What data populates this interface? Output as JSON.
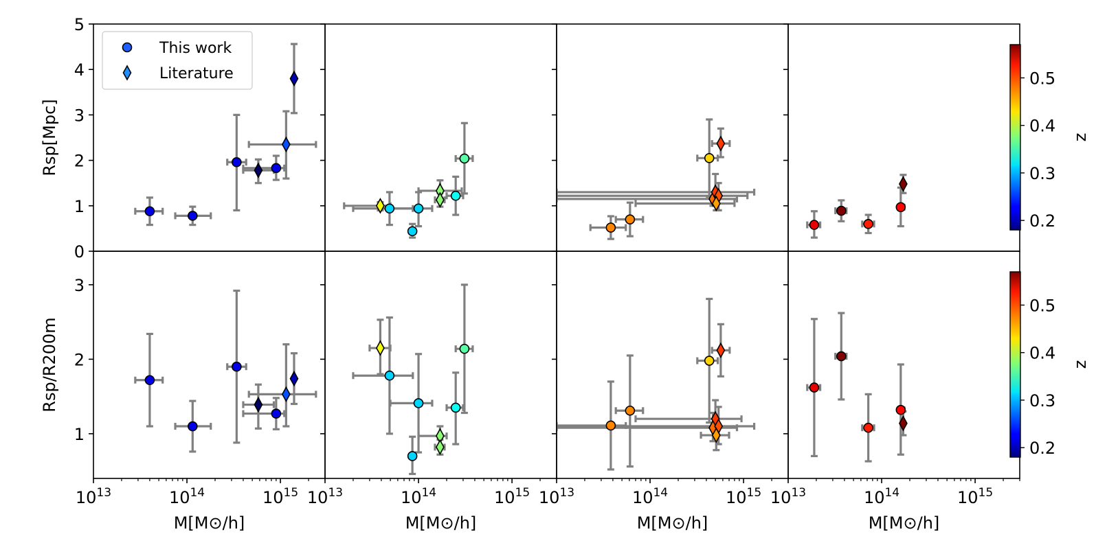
{
  "figure": {
    "xlabel": "M[M⊙/h]",
    "ylabels": [
      "Rsp[Mpc]",
      "Rsp/R200m"
    ],
    "colorbar_label": "z",
    "colorbar_ticks": [
      "0.2",
      "0.3",
      "0.4",
      "0.5"
    ],
    "legend": [
      {
        "label": "This work",
        "marker": "circle"
      },
      {
        "label": "Literature",
        "marker": "diamond"
      }
    ]
  },
  "chart_data": {
    "type": "scatter",
    "xscale": "log",
    "xlim": [
      10000000000000.0,
      3000000000000000.0
    ],
    "x_tick_labels": [
      "10",
      "13",
      "10",
      "14",
      "10",
      "15"
    ],
    "colormap": "jet",
    "color_range": [
      0.18,
      0.57
    ],
    "rows": [
      {
        "ylabel": "Rsp[Mpc]",
        "ylim": [
          0,
          5
        ],
        "ytick_values": [
          0,
          1,
          2,
          3,
          4,
          5
        ],
        "ytick_labels": [
          "0",
          "1",
          "2",
          "3",
          "4",
          "5"
        ],
        "panels": [
          {
            "points": [
              {
                "m": 40000000000000.0,
                "y": 0.88,
                "xlo": 28000000000000.0,
                "xhi": 55000000000000.0,
                "ylo": 0.58,
                "yhi": 1.18,
                "z": 0.22,
                "marker": "circle"
              },
              {
                "m": 115000000000000.0,
                "y": 0.78,
                "xlo": 75000000000000.0,
                "xhi": 180000000000000.0,
                "ylo": 0.58,
                "yhi": 0.98,
                "z": 0.22,
                "marker": "circle"
              },
              {
                "m": 340000000000000.0,
                "y": 1.96,
                "xlo": 270000000000000.0,
                "xhi": 430000000000000.0,
                "ylo": 0.9,
                "yhi": 3.0,
                "z": 0.22,
                "marker": "circle"
              },
              {
                "m": 580000000000000.0,
                "y": 1.78,
                "xlo": 400000000000000.0,
                "xhi": 850000000000000.0,
                "ylo": 1.5,
                "yhi": 2.02,
                "z": 0.17,
                "marker": "diamond"
              },
              {
                "m": 900000000000000.0,
                "y": 1.83,
                "xlo": 400000000000000.0,
                "xhi": 1100000000000000.0,
                "ylo": 1.57,
                "yhi": 2.1,
                "z": 0.22,
                "marker": "circle"
              },
              {
                "m": 1150000000000000.0,
                "y": 2.35,
                "xlo": 460000000000000.0,
                "xhi": 2400000000000000.0,
                "ylo": 1.6,
                "yhi": 3.08,
                "z": 0.26,
                "marker": "diamond"
              },
              {
                "m": 1400000000000000.0,
                "y": 3.8,
                "xlo": 1400000000000000.0,
                "xhi": 1400000000000000.0,
                "ylo": 3.04,
                "yhi": 4.56,
                "z": 0.2,
                "marker": "diamond"
              }
            ]
          },
          {
            "points": [
              {
                "m": 39000000000000.0,
                "y": 1.0,
                "xlo": 16000000000000.0,
                "xhi": 50000000000000.0,
                "ylo": 0.9,
                "yhi": 1.08,
                "z": 0.42,
                "marker": "diamond"
              },
              {
                "m": 49000000000000.0,
                "y": 0.94,
                "xlo": 20000000000000.0,
                "xhi": 87000000000000.0,
                "ylo": 0.58,
                "yhi": 1.3,
                "z": 0.31,
                "marker": "circle"
              },
              {
                "m": 86000000000000.0,
                "y": 0.44,
                "xlo": 86000000000000.0,
                "xhi": 86000000000000.0,
                "ylo": 0.3,
                "yhi": 0.6,
                "z": 0.31,
                "marker": "circle"
              },
              {
                "m": 100000000000000.0,
                "y": 0.94,
                "xlo": 50000000000000.0,
                "xhi": 140000000000000.0,
                "ylo": 0.55,
                "yhi": 1.3,
                "z": 0.31,
                "marker": "circle"
              },
              {
                "m": 170000000000000.0,
                "y": 1.33,
                "xlo": 100000000000000.0,
                "xhi": 290000000000000.0,
                "ylo": 1.1,
                "yhi": 1.56,
                "z": 0.38,
                "marker": "diamond"
              },
              {
                "m": 170000000000000.0,
                "y": 1.13,
                "xlo": 150000000000000.0,
                "xhi": 190000000000000.0,
                "ylo": 0.98,
                "yhi": 1.28,
                "z": 0.38,
                "marker": "diamond"
              },
              {
                "m": 250000000000000.0,
                "y": 1.22,
                "xlo": 200000000000000.0,
                "xhi": 300000000000000.0,
                "ylo": 0.8,
                "yhi": 1.64,
                "z": 0.33,
                "marker": "circle"
              },
              {
                "m": 310000000000000.0,
                "y": 2.04,
                "xlo": 250000000000000.0,
                "xhi": 380000000000000.0,
                "ylo": 1.27,
                "yhi": 2.82,
                "z": 0.36,
                "marker": "circle"
              }
            ]
          },
          {
            "points": [
              {
                "m": 38000000000000.0,
                "y": 0.52,
                "xlo": 23000000000000.0,
                "xhi": 55000000000000.0,
                "ylo": 0.27,
                "yhi": 0.77,
                "z": 0.47,
                "marker": "circle"
              },
              {
                "m": 61000000000000.0,
                "y": 0.7,
                "xlo": 43000000000000.0,
                "xhi": 84000000000000.0,
                "ylo": 0.33,
                "yhi": 1.07,
                "z": 0.47,
                "marker": "circle"
              },
              {
                "m": 430000000000000.0,
                "y": 2.05,
                "xlo": 320000000000000.0,
                "xhi": 530000000000000.0,
                "ylo": 1.2,
                "yhi": 2.9,
                "z": 0.44,
                "marker": "circle"
              },
              {
                "m": 570000000000000.0,
                "y": 2.37,
                "xlo": 460000000000000.0,
                "xhi": 710000000000000.0,
                "ylo": 2.07,
                "yhi": 2.7,
                "z": 0.5,
                "marker": "diamond"
              },
              {
                "m": 470000000000000.0,
                "y": 1.15,
                "xlo": 10000000000000.0,
                "xhi": 850000000000000.0,
                "ylo": 1.0,
                "yhi": 1.3,
                "z": 0.48,
                "marker": "diamond"
              },
              {
                "m": 500000000000000.0,
                "y": 1.3,
                "xlo": 10000000000000.0,
                "xhi": 1300000000000000.0,
                "ylo": 1.0,
                "yhi": 1.7,
                "z": 0.5,
                "marker": "diamond"
              },
              {
                "m": 540000000000000.0,
                "y": 1.22,
                "xlo": 10000000000000.0,
                "xhi": 1100000000000000.0,
                "ylo": 0.9,
                "yhi": 1.5,
                "z": 0.49,
                "marker": "diamond"
              },
              {
                "m": 510000000000000.0,
                "y": 1.05,
                "xlo": 70000000000000.0,
                "xhi": 800000000000000.0,
                "ylo": 0.9,
                "yhi": 1.2,
                "z": 0.46,
                "marker": "diamond"
              }
            ]
          },
          {
            "points": [
              {
                "m": 19000000000000.0,
                "y": 0.58,
                "xlo": 16000000000000.0,
                "xhi": 22000000000000.0,
                "ylo": 0.3,
                "yhi": 0.88,
                "z": 0.53,
                "marker": "circle"
              },
              {
                "m": 37000000000000.0,
                "y": 0.89,
                "xlo": 32000000000000.0,
                "xhi": 42000000000000.0,
                "ylo": 0.66,
                "yhi": 1.12,
                "z": 0.57,
                "marker": "circle"
              },
              {
                "m": 72000000000000.0,
                "y": 0.6,
                "xlo": 62000000000000.0,
                "xhi": 83000000000000.0,
                "ylo": 0.4,
                "yhi": 0.8,
                "z": 0.51,
                "marker": "circle"
              },
              {
                "m": 160000000000000.0,
                "y": 0.97,
                "xlo": 150000000000000.0,
                "xhi": 175000000000000.0,
                "ylo": 0.55,
                "yhi": 1.4,
                "z": 0.52,
                "marker": "circle"
              },
              {
                "m": 170000000000000.0,
                "y": 1.48,
                "xlo": 170000000000000.0,
                "xhi": 170000000000000.0,
                "ylo": 1.28,
                "yhi": 1.68,
                "z": 0.57,
                "marker": "diamond"
              }
            ]
          }
        ]
      },
      {
        "ylabel": "Rsp/R200m",
        "ylim": [
          0.4,
          3.45
        ],
        "ytick_values": [
          1,
          2,
          3
        ],
        "ytick_labels": [
          "1",
          "2",
          "3"
        ],
        "panels": [
          {
            "points": [
              {
                "m": 40000000000000.0,
                "y": 1.72,
                "xlo": 28000000000000.0,
                "xhi": 55000000000000.0,
                "ylo": 1.1,
                "yhi": 2.34,
                "z": 0.22,
                "marker": "circle"
              },
              {
                "m": 115000000000000.0,
                "y": 1.1,
                "xlo": 75000000000000.0,
                "xhi": 180000000000000.0,
                "ylo": 0.76,
                "yhi": 1.44,
                "z": 0.22,
                "marker": "circle"
              },
              {
                "m": 340000000000000.0,
                "y": 1.9,
                "xlo": 270000000000000.0,
                "xhi": 430000000000000.0,
                "ylo": 0.88,
                "yhi": 2.92,
                "z": 0.22,
                "marker": "circle"
              },
              {
                "m": 580000000000000.0,
                "y": 1.39,
                "xlo": 400000000000000.0,
                "xhi": 850000000000000.0,
                "ylo": 1.07,
                "yhi": 1.66,
                "z": 0.17,
                "marker": "diamond"
              },
              {
                "m": 900000000000000.0,
                "y": 1.27,
                "xlo": 400000000000000.0,
                "xhi": 1100000000000000.0,
                "ylo": 1.06,
                "yhi": 1.48,
                "z": 0.22,
                "marker": "circle"
              },
              {
                "m": 1150000000000000.0,
                "y": 1.53,
                "xlo": 460000000000000.0,
                "xhi": 2400000000000000.0,
                "ylo": 1.1,
                "yhi": 2.2,
                "z": 0.26,
                "marker": "diamond"
              },
              {
                "m": 1400000000000000.0,
                "y": 1.74,
                "xlo": 1400000000000000.0,
                "xhi": 1400000000000000.0,
                "ylo": 1.4,
                "yhi": 2.08,
                "z": 0.2,
                "marker": "diamond"
              }
            ]
          },
          {
            "points": [
              {
                "m": 39000000000000.0,
                "y": 2.15,
                "xlo": 30000000000000.0,
                "xhi": 50000000000000.0,
                "ylo": 1.8,
                "yhi": 2.53,
                "z": 0.42,
                "marker": "diamond"
              },
              {
                "m": 49000000000000.0,
                "y": 1.78,
                "xlo": 20000000000000.0,
                "xhi": 87000000000000.0,
                "ylo": 1.0,
                "yhi": 2.56,
                "z": 0.31,
                "marker": "circle"
              },
              {
                "m": 86000000000000.0,
                "y": 0.7,
                "xlo": 86000000000000.0,
                "xhi": 86000000000000.0,
                "ylo": 0.46,
                "yhi": 0.96,
                "z": 0.31,
                "marker": "circle"
              },
              {
                "m": 100000000000000.0,
                "y": 1.41,
                "xlo": 50000000000000.0,
                "xhi": 140000000000000.0,
                "ylo": 0.75,
                "yhi": 2.07,
                "z": 0.31,
                "marker": "circle"
              },
              {
                "m": 170000000000000.0,
                "y": 0.97,
                "xlo": 100000000000000.0,
                "xhi": 200000000000000.0,
                "ylo": 0.82,
                "yhi": 1.1,
                "z": 0.38,
                "marker": "diamond"
              },
              {
                "m": 170000000000000.0,
                "y": 0.82,
                "xlo": 150000000000000.0,
                "xhi": 190000000000000.0,
                "ylo": 0.72,
                "yhi": 0.92,
                "z": 0.38,
                "marker": "diamond"
              },
              {
                "m": 250000000000000.0,
                "y": 1.35,
                "xlo": 200000000000000.0,
                "xhi": 300000000000000.0,
                "ylo": 0.86,
                "yhi": 1.82,
                "z": 0.33,
                "marker": "circle"
              },
              {
                "m": 310000000000000.0,
                "y": 2.14,
                "xlo": 250000000000000.0,
                "xhi": 380000000000000.0,
                "ylo": 1.28,
                "yhi": 3.0,
                "z": 0.36,
                "marker": "circle"
              }
            ]
          },
          {
            "points": [
              {
                "m": 38000000000000.0,
                "y": 1.11,
                "xlo": 10000000000000.0,
                "xhi": 55000000000000.0,
                "ylo": 0.52,
                "yhi": 1.7,
                "z": 0.47,
                "marker": "circle"
              },
              {
                "m": 61000000000000.0,
                "y": 1.31,
                "xlo": 43000000000000.0,
                "xhi": 84000000000000.0,
                "ylo": 0.56,
                "yhi": 2.05,
                "z": 0.47,
                "marker": "circle"
              },
              {
                "m": 430000000000000.0,
                "y": 1.98,
                "xlo": 320000000000000.0,
                "xhi": 530000000000000.0,
                "ylo": 1.15,
                "yhi": 2.81,
                "z": 0.44,
                "marker": "circle"
              },
              {
                "m": 570000000000000.0,
                "y": 2.12,
                "xlo": 460000000000000.0,
                "xhi": 710000000000000.0,
                "ylo": 1.77,
                "yhi": 2.47,
                "z": 0.5,
                "marker": "diamond"
              },
              {
                "m": 500000000000000.0,
                "y": 1.2,
                "xlo": 70000000000000.0,
                "xhi": 950000000000000.0,
                "ylo": 0.95,
                "yhi": 1.45,
                "z": 0.5,
                "marker": "diamond"
              },
              {
                "m": 470000000000000.0,
                "y": 1.08,
                "xlo": 10000000000000.0,
                "xhi": 850000000000000.0,
                "ylo": 0.9,
                "yhi": 1.28,
                "z": 0.48,
                "marker": "diamond"
              },
              {
                "m": 540000000000000.0,
                "y": 1.1,
                "xlo": 10000000000000.0,
                "xhi": 1300000000000000.0,
                "ylo": 0.86,
                "yhi": 1.36,
                "z": 0.49,
                "marker": "diamond"
              },
              {
                "m": 510000000000000.0,
                "y": 0.98,
                "xlo": 350000000000000.0,
                "xhi": 700000000000000.0,
                "ylo": 0.78,
                "yhi": 1.18,
                "z": 0.46,
                "marker": "diamond"
              }
            ]
          },
          {
            "points": [
              {
                "m": 19000000000000.0,
                "y": 1.62,
                "xlo": 16000000000000.0,
                "xhi": 22000000000000.0,
                "ylo": 0.7,
                "yhi": 2.54,
                "z": 0.53,
                "marker": "circle"
              },
              {
                "m": 37000000000000.0,
                "y": 2.04,
                "xlo": 32000000000000.0,
                "xhi": 42000000000000.0,
                "ylo": 1.46,
                "yhi": 2.62,
                "z": 0.57,
                "marker": "circle"
              },
              {
                "m": 72000000000000.0,
                "y": 1.08,
                "xlo": 62000000000000.0,
                "xhi": 83000000000000.0,
                "ylo": 0.63,
                "yhi": 1.53,
                "z": 0.51,
                "marker": "circle"
              },
              {
                "m": 160000000000000.0,
                "y": 1.32,
                "xlo": 150000000000000.0,
                "xhi": 175000000000000.0,
                "ylo": 0.72,
                "yhi": 1.93,
                "z": 0.52,
                "marker": "circle"
              },
              {
                "m": 170000000000000.0,
                "y": 1.14,
                "xlo": 170000000000000.0,
                "xhi": 170000000000000.0,
                "ylo": 0.98,
                "yhi": 1.3,
                "z": 0.57,
                "marker": "diamond"
              }
            ]
          }
        ]
      }
    ]
  }
}
